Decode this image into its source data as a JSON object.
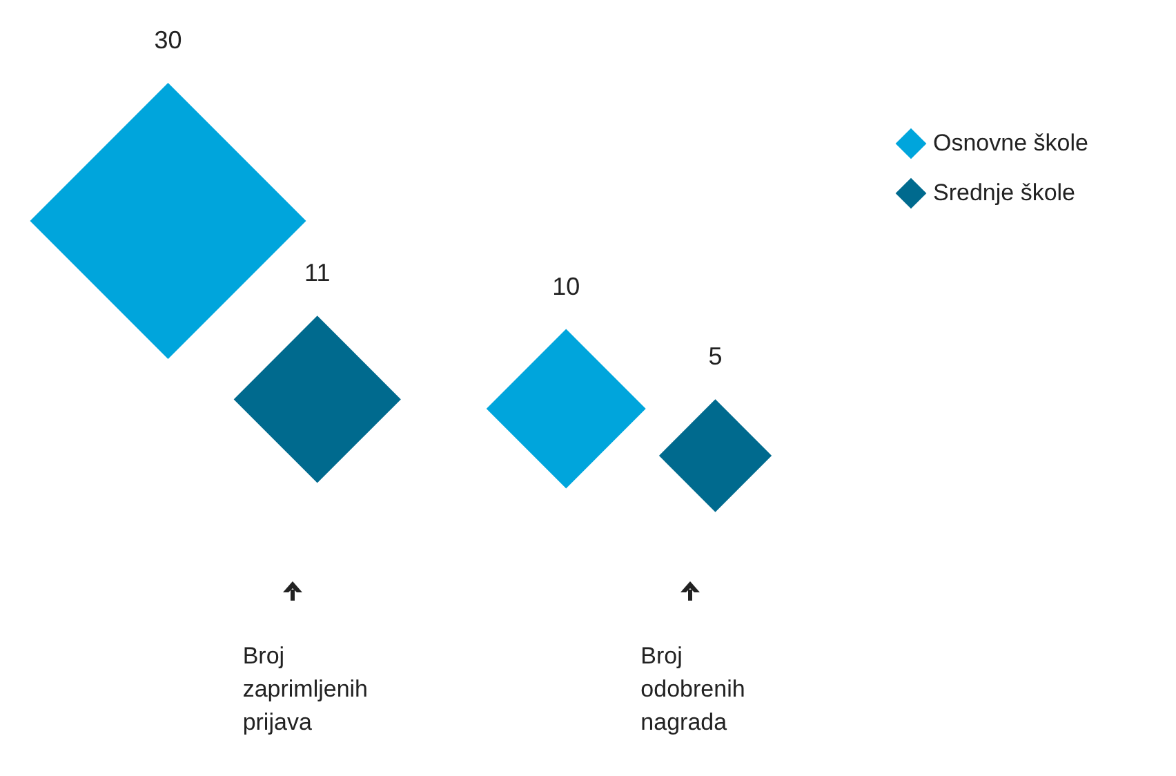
{
  "chart_data": {
    "type": "other",
    "categories": [
      "Broj zaprimljenih prijava",
      "Broj odobrenih nagrada"
    ],
    "series": [
      {
        "name": "Osnovne škole",
        "color": "#00a5dc",
        "values": [
          30,
          10
        ]
      },
      {
        "name": "Srednje škole",
        "color": "#006a8e",
        "values": [
          11,
          5
        ]
      }
    ],
    "data_labels": true,
    "legend": "right"
  }
}
